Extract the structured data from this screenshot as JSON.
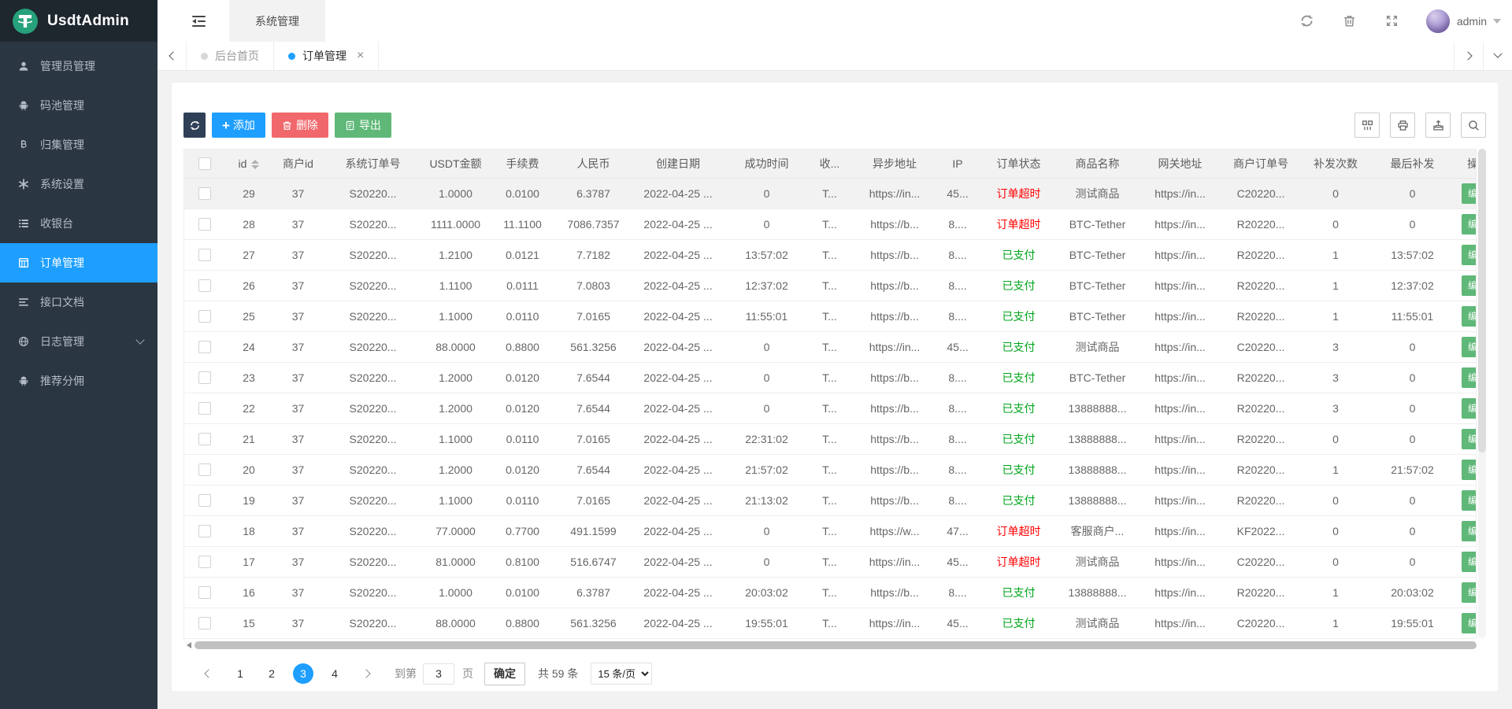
{
  "brand": {
    "name": "UsdtAdmin"
  },
  "colors": {
    "accent": "#1E9FFF",
    "button_dark": "#2F4056",
    "button_red": "#F1686C",
    "button_green": "#5FB878",
    "status_paid": "#00A41B",
    "status_timeout": "#FF0000",
    "logo_green": "#26A17B"
  },
  "sidebar": {
    "items": [
      {
        "icon": "user-icon",
        "label": "管理员管理",
        "active": false,
        "chevron": false
      },
      {
        "icon": "android-icon",
        "label": "码池管理",
        "active": false,
        "chevron": false
      },
      {
        "icon": "bitcoin-icon",
        "label": "归集管理",
        "active": false,
        "chevron": false
      },
      {
        "icon": "asterisk-icon",
        "label": "系统设置",
        "active": false,
        "chevron": false
      },
      {
        "icon": "list-icon",
        "label": "收银台",
        "active": false,
        "chevron": false
      },
      {
        "icon": "calculator-icon",
        "label": "订单管理",
        "active": true,
        "chevron": false
      },
      {
        "icon": "align-left-icon",
        "label": "接口文档",
        "active": false,
        "chevron": false
      },
      {
        "icon": "sphere-icon",
        "label": "日志管理",
        "active": false,
        "chevron": true
      },
      {
        "icon": "android-icon",
        "label": "推荐分佣",
        "active": false,
        "chevron": false
      }
    ]
  },
  "topbar": {
    "nav_item": "系统管理",
    "username": "admin"
  },
  "tabbar": {
    "tabs": [
      {
        "label": "后台首页",
        "active": false,
        "closable": false
      },
      {
        "label": "订单管理",
        "active": true,
        "closable": true
      }
    ],
    "close_glyph": "×"
  },
  "toolbar": {
    "add_label": "添加",
    "delete_label": "删除",
    "export_label": "导出"
  },
  "table": {
    "columns": [
      {
        "key": "id",
        "label": "id",
        "sortable": true
      },
      {
        "key": "merchant_id",
        "label": "商户id"
      },
      {
        "key": "sys_order_no",
        "label": "系统订单号"
      },
      {
        "key": "usdt",
        "label": "USDT金额"
      },
      {
        "key": "fee",
        "label": "手续费"
      },
      {
        "key": "cny",
        "label": "人民币"
      },
      {
        "key": "created",
        "label": "创建日期"
      },
      {
        "key": "success_time",
        "label": "成功时间"
      },
      {
        "key": "recv",
        "label": "收..."
      },
      {
        "key": "async_url",
        "label": "异步地址"
      },
      {
        "key": "ip",
        "label": "IP"
      },
      {
        "key": "status",
        "label": "订单状态"
      },
      {
        "key": "product",
        "label": "商品名称"
      },
      {
        "key": "gateway",
        "label": "网关地址"
      },
      {
        "key": "merchant_order_no",
        "label": "商户订单号"
      },
      {
        "key": "resend_count",
        "label": "补发次数"
      },
      {
        "key": "last_resend",
        "label": "最后补发"
      },
      {
        "key": "action",
        "label": "操..."
      }
    ],
    "action_label": "编辑",
    "highlighted_row_id": "29",
    "rows": [
      {
        "id": "29",
        "merchant_id": "37",
        "sys_order_no": "S20220...",
        "usdt": "1.0000",
        "fee": "0.0100",
        "cny": "6.3787",
        "created": "2022-04-25 ...",
        "success_time": "0",
        "recv": "T...",
        "async_url": "https://in...",
        "ip": "45...",
        "status": "订单超时",
        "product": "测试商品",
        "gateway": "https://in...",
        "merchant_order_no": "C20220...",
        "resend_count": "0",
        "last_resend": "0"
      },
      {
        "id": "28",
        "merchant_id": "37",
        "sys_order_no": "S20220...",
        "usdt": "1111.0000",
        "fee": "11.1100",
        "cny": "7086.7357",
        "created": "2022-04-25 ...",
        "success_time": "0",
        "recv": "T...",
        "async_url": "https://b...",
        "ip": "8....",
        "status": "订单超时",
        "product": "BTC-Tether",
        "gateway": "https://in...",
        "merchant_order_no": "R20220...",
        "resend_count": "0",
        "last_resend": "0"
      },
      {
        "id": "27",
        "merchant_id": "37",
        "sys_order_no": "S20220...",
        "usdt": "1.2100",
        "fee": "0.0121",
        "cny": "7.7182",
        "created": "2022-04-25 ...",
        "success_time": "13:57:02",
        "recv": "T...",
        "async_url": "https://b...",
        "ip": "8....",
        "status": "已支付",
        "product": "BTC-Tether",
        "gateway": "https://in...",
        "merchant_order_no": "R20220...",
        "resend_count": "1",
        "last_resend": "13:57:02"
      },
      {
        "id": "26",
        "merchant_id": "37",
        "sys_order_no": "S20220...",
        "usdt": "1.1100",
        "fee": "0.0111",
        "cny": "7.0803",
        "created": "2022-04-25 ...",
        "success_time": "12:37:02",
        "recv": "T...",
        "async_url": "https://b...",
        "ip": "8....",
        "status": "已支付",
        "product": "BTC-Tether",
        "gateway": "https://in...",
        "merchant_order_no": "R20220...",
        "resend_count": "1",
        "last_resend": "12:37:02"
      },
      {
        "id": "25",
        "merchant_id": "37",
        "sys_order_no": "S20220...",
        "usdt": "1.1000",
        "fee": "0.0110",
        "cny": "7.0165",
        "created": "2022-04-25 ...",
        "success_time": "11:55:01",
        "recv": "T...",
        "async_url": "https://b...",
        "ip": "8....",
        "status": "已支付",
        "product": "BTC-Tether",
        "gateway": "https://in...",
        "merchant_order_no": "R20220...",
        "resend_count": "1",
        "last_resend": "11:55:01"
      },
      {
        "id": "24",
        "merchant_id": "37",
        "sys_order_no": "S20220...",
        "usdt": "88.0000",
        "fee": "0.8800",
        "cny": "561.3256",
        "created": "2022-04-25 ...",
        "success_time": "0",
        "recv": "T...",
        "async_url": "https://in...",
        "ip": "45...",
        "status": "已支付",
        "product": "测试商品",
        "gateway": "https://in...",
        "merchant_order_no": "C20220...",
        "resend_count": "3",
        "last_resend": "0"
      },
      {
        "id": "23",
        "merchant_id": "37",
        "sys_order_no": "S20220...",
        "usdt": "1.2000",
        "fee": "0.0120",
        "cny": "7.6544",
        "created": "2022-04-25 ...",
        "success_time": "0",
        "recv": "T...",
        "async_url": "https://b...",
        "ip": "8....",
        "status": "已支付",
        "product": "BTC-Tether",
        "gateway": "https://in...",
        "merchant_order_no": "R20220...",
        "resend_count": "3",
        "last_resend": "0"
      },
      {
        "id": "22",
        "merchant_id": "37",
        "sys_order_no": "S20220...",
        "usdt": "1.2000",
        "fee": "0.0120",
        "cny": "7.6544",
        "created": "2022-04-25 ...",
        "success_time": "0",
        "recv": "T...",
        "async_url": "https://b...",
        "ip": "8....",
        "status": "已支付",
        "product": "13888888...",
        "gateway": "https://in...",
        "merchant_order_no": "R20220...",
        "resend_count": "3",
        "last_resend": "0"
      },
      {
        "id": "21",
        "merchant_id": "37",
        "sys_order_no": "S20220...",
        "usdt": "1.1000",
        "fee": "0.0110",
        "cny": "7.0165",
        "created": "2022-04-25 ...",
        "success_time": "22:31:02",
        "recv": "T...",
        "async_url": "https://b...",
        "ip": "8....",
        "status": "已支付",
        "product": "13888888...",
        "gateway": "https://in...",
        "merchant_order_no": "R20220...",
        "resend_count": "0",
        "last_resend": "0"
      },
      {
        "id": "20",
        "merchant_id": "37",
        "sys_order_no": "S20220...",
        "usdt": "1.2000",
        "fee": "0.0120",
        "cny": "7.6544",
        "created": "2022-04-25 ...",
        "success_time": "21:57:02",
        "recv": "T...",
        "async_url": "https://b...",
        "ip": "8....",
        "status": "已支付",
        "product": "13888888...",
        "gateway": "https://in...",
        "merchant_order_no": "R20220...",
        "resend_count": "1",
        "last_resend": "21:57:02"
      },
      {
        "id": "19",
        "merchant_id": "37",
        "sys_order_no": "S20220...",
        "usdt": "1.1000",
        "fee": "0.0110",
        "cny": "7.0165",
        "created": "2022-04-25 ...",
        "success_time": "21:13:02",
        "recv": "T...",
        "async_url": "https://b...",
        "ip": "8....",
        "status": "已支付",
        "product": "13888888...",
        "gateway": "https://in...",
        "merchant_order_no": "R20220...",
        "resend_count": "0",
        "last_resend": "0"
      },
      {
        "id": "18",
        "merchant_id": "37",
        "sys_order_no": "S20220...",
        "usdt": "77.0000",
        "fee": "0.7700",
        "cny": "491.1599",
        "created": "2022-04-25 ...",
        "success_time": "0",
        "recv": "T...",
        "async_url": "https://w...",
        "ip": "47...",
        "status": "订单超时",
        "product": "客服商户...",
        "gateway": "https://in...",
        "merchant_order_no": "KF2022...",
        "resend_count": "0",
        "last_resend": "0"
      },
      {
        "id": "17",
        "merchant_id": "37",
        "sys_order_no": "S20220...",
        "usdt": "81.0000",
        "fee": "0.8100",
        "cny": "516.6747",
        "created": "2022-04-25 ...",
        "success_time": "0",
        "recv": "T...",
        "async_url": "https://in...",
        "ip": "45...",
        "status": "订单超时",
        "product": "测试商品",
        "gateway": "https://in...",
        "merchant_order_no": "C20220...",
        "resend_count": "0",
        "last_resend": "0"
      },
      {
        "id": "16",
        "merchant_id": "37",
        "sys_order_no": "S20220...",
        "usdt": "1.0000",
        "fee": "0.0100",
        "cny": "6.3787",
        "created": "2022-04-25 ...",
        "success_time": "20:03:02",
        "recv": "T...",
        "async_url": "https://b...",
        "ip": "8....",
        "status": "已支付",
        "product": "13888888...",
        "gateway": "https://in...",
        "merchant_order_no": "R20220...",
        "resend_count": "1",
        "last_resend": "20:03:02"
      },
      {
        "id": "15",
        "merchant_id": "37",
        "sys_order_no": "S20220...",
        "usdt": "88.0000",
        "fee": "0.8800",
        "cny": "561.3256",
        "created": "2022-04-25 ...",
        "success_time": "19:55:01",
        "recv": "T...",
        "async_url": "https://in...",
        "ip": "45...",
        "status": "已支付",
        "product": "测试商品",
        "gateway": "https://in...",
        "merchant_order_no": "C20220...",
        "resend_count": "1",
        "last_resend": "19:55:01"
      }
    ]
  },
  "pagination": {
    "pages": [
      "1",
      "2",
      "3",
      "4"
    ],
    "active_page": "3",
    "goto_label": "到第",
    "goto_value": "3",
    "page_unit": "页",
    "confirm_label": "确定",
    "total_label": "共 59 条",
    "per_page_selected": "15 条/页"
  }
}
